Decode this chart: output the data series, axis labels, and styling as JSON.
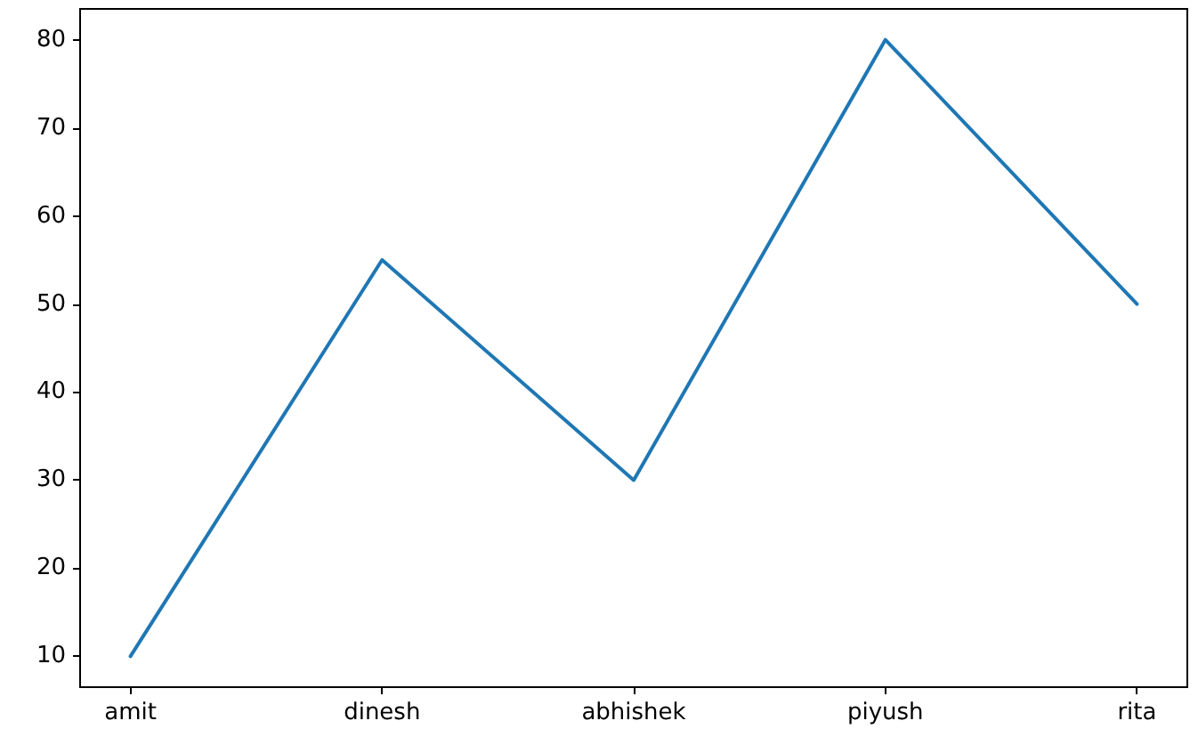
{
  "chart_data": {
    "type": "line",
    "categories": [
      "amit",
      "dinesh",
      "abhishek",
      "piyush",
      "rita"
    ],
    "series": [
      {
        "color": "#1f77b4",
        "values": [
          10,
          55,
          30,
          80,
          50
        ]
      }
    ],
    "ylim": [
      6.5,
      83.5
    ],
    "yticks": [
      10,
      20,
      30,
      40,
      50,
      60,
      70,
      80
    ],
    "grid": false,
    "marker": "none",
    "line_style": "solid"
  }
}
